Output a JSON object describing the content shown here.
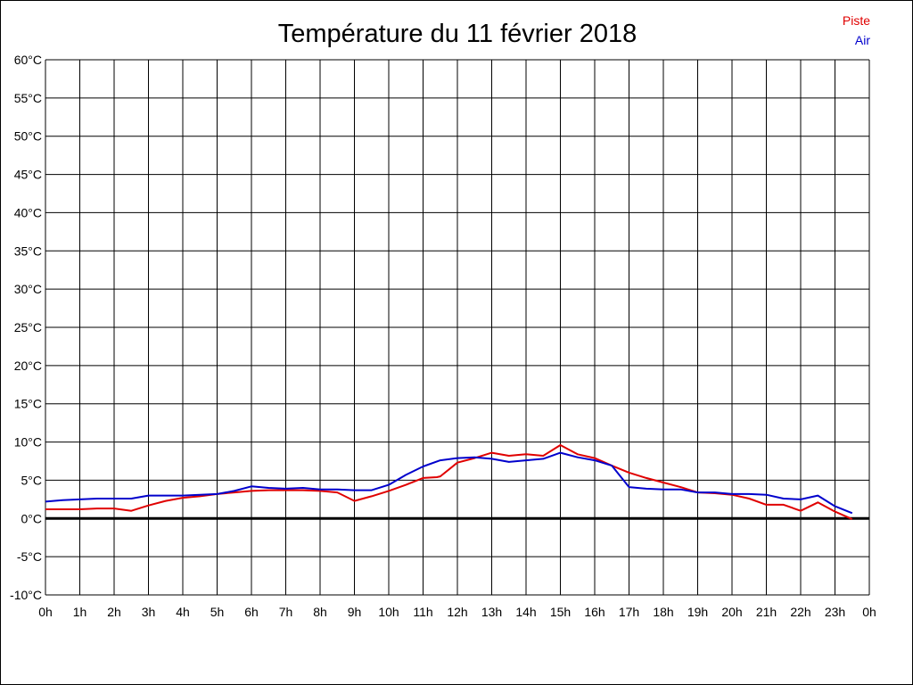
{
  "chart_data": {
    "type": "line",
    "title": "Température du 11 février 2018",
    "y_ticks": [
      "60°C",
      "55°C",
      "50°C",
      "45°C",
      "40°C",
      "35°C",
      "30°C",
      "25°C",
      "20°C",
      "15°C",
      "10°C",
      "5°C",
      "0°C",
      "-5°C",
      "-10°C"
    ],
    "x_ticks": [
      "0h",
      "1h",
      "2h",
      "3h",
      "4h",
      "5h",
      "6h",
      "7h",
      "8h",
      "9h",
      "10h",
      "11h",
      "12h",
      "13h",
      "14h",
      "15h",
      "16h",
      "17h",
      "18h",
      "19h",
      "20h",
      "21h",
      "22h",
      "23h",
      "0h"
    ],
    "ylim": [
      -10,
      60
    ],
    "xlim": [
      0,
      24
    ],
    "grid": true,
    "legend_position": "top-right",
    "series": [
      {
        "name": "Piste",
        "color": "#e00000",
        "x": [
          0,
          0.5,
          1,
          1.5,
          2,
          2.5,
          3,
          3.5,
          4,
          4.5,
          5,
          5.5,
          6,
          6.5,
          7,
          7.5,
          8,
          8.5,
          9,
          9.5,
          10,
          10.5,
          11,
          11.4,
          11.5,
          12,
          12.5,
          13,
          13.5,
          14,
          14.5,
          15,
          15.5,
          16,
          16.5,
          17,
          17.5,
          18,
          18.5,
          19,
          19.5,
          20,
          20.5,
          21,
          21.5,
          22,
          22.5,
          23,
          23.5
        ],
        "values": [
          1.2,
          1.2,
          1.2,
          1.3,
          1.3,
          1.0,
          1.7,
          2.3,
          2.7,
          2.9,
          3.2,
          3.4,
          3.6,
          3.7,
          3.7,
          3.7,
          3.6,
          3.4,
          2.3,
          2.9,
          3.6,
          4.4,
          5.3,
          5.4,
          5.5,
          7.3,
          7.9,
          8.6,
          8.2,
          8.4,
          8.2,
          9.6,
          8.4,
          7.9,
          6.9,
          6.0,
          5.3,
          4.7,
          4.1,
          3.4,
          3.3,
          3.1,
          2.6,
          1.8,
          1.8,
          1.0,
          2.1,
          0.9,
          -0.1
        ]
      },
      {
        "name": "Air",
        "color": "#0000cc",
        "x": [
          0,
          0.5,
          1,
          1.5,
          2,
          2.5,
          3,
          3.5,
          4,
          4.5,
          5,
          5.5,
          6,
          6.5,
          7,
          7.5,
          8,
          8.5,
          9,
          9.5,
          10,
          10.5,
          11,
          11.5,
          12,
          12.5,
          13,
          13.5,
          14,
          14.5,
          15,
          15.5,
          16,
          16.5,
          17,
          17.5,
          18,
          18.5,
          19,
          19.5,
          20,
          20.5,
          21,
          21.5,
          22,
          22.5,
          23,
          23.5
        ],
        "values": [
          2.2,
          2.4,
          2.5,
          2.6,
          2.6,
          2.6,
          3.0,
          3.0,
          3.0,
          3.1,
          3.2,
          3.6,
          4.2,
          4.0,
          3.9,
          4.0,
          3.8,
          3.8,
          3.7,
          3.7,
          4.4,
          5.7,
          6.8,
          7.6,
          7.9,
          8.0,
          7.8,
          7.4,
          7.6,
          7.8,
          8.6,
          8.0,
          7.6,
          6.9,
          4.1,
          3.9,
          3.8,
          3.8,
          3.4,
          3.4,
          3.2,
          3.2,
          3.1,
          2.6,
          2.5,
          3.0,
          1.6,
          0.7
        ]
      }
    ]
  }
}
